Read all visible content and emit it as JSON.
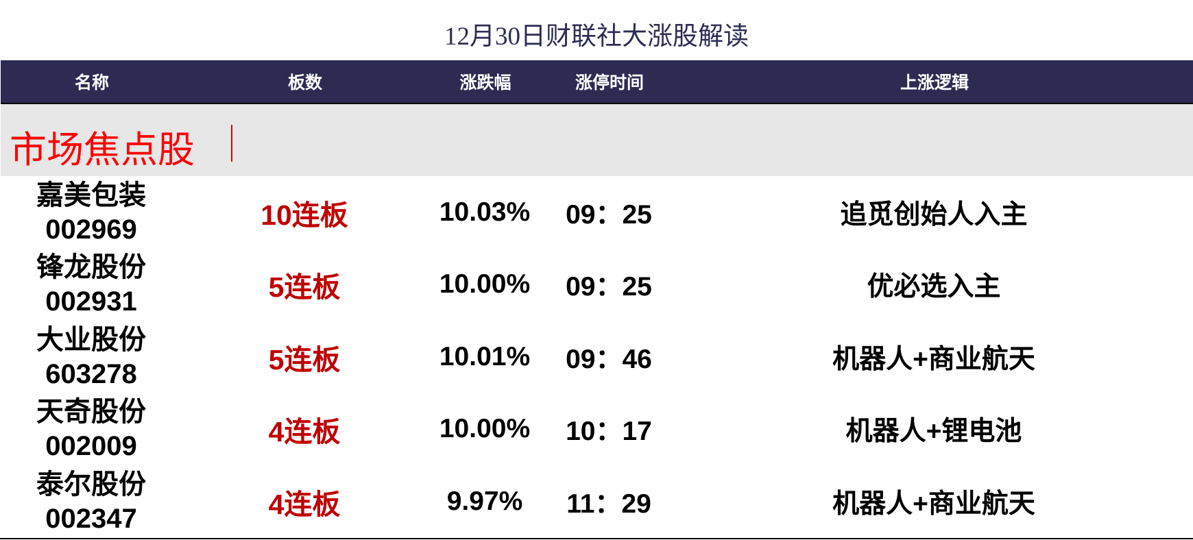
{
  "title": "12月30日财联社大涨股解读",
  "columns": [
    "名称",
    "板数",
    "涨跌幅",
    "涨停时间",
    "上涨逻辑"
  ],
  "section": {
    "title": "市场焦点股"
  },
  "colors": {
    "header_bg": "#2d2b52",
    "section_bg": "#e7e7e7",
    "section_title": "#ff0000",
    "boards": "#c00000"
  },
  "rows": [
    {
      "name": "嘉美包装",
      "code": "002969",
      "boards": "10连板",
      "change": "10.03%",
      "time": "09：25",
      "logic": "追觅创始人入主"
    },
    {
      "name": "锋龙股份",
      "code": "002931",
      "boards": "5连板",
      "change": "10.00%",
      "time": "09：25",
      "logic": "优必选入主"
    },
    {
      "name": "大业股份",
      "code": "603278",
      "boards": "5连板",
      "change": "10.01%",
      "time": "09：46",
      "logic": "机器人+商业航天"
    },
    {
      "name": "天奇股份",
      "code": "002009",
      "boards": "4连板",
      "change": "10.00%",
      "time": "10：17",
      "logic": "机器人+锂电池"
    },
    {
      "name": "泰尔股份",
      "code": "002347",
      "boards": "4连板",
      "change": "9.97%",
      "time": "11：29",
      "logic": "机器人+商业航天"
    }
  ]
}
